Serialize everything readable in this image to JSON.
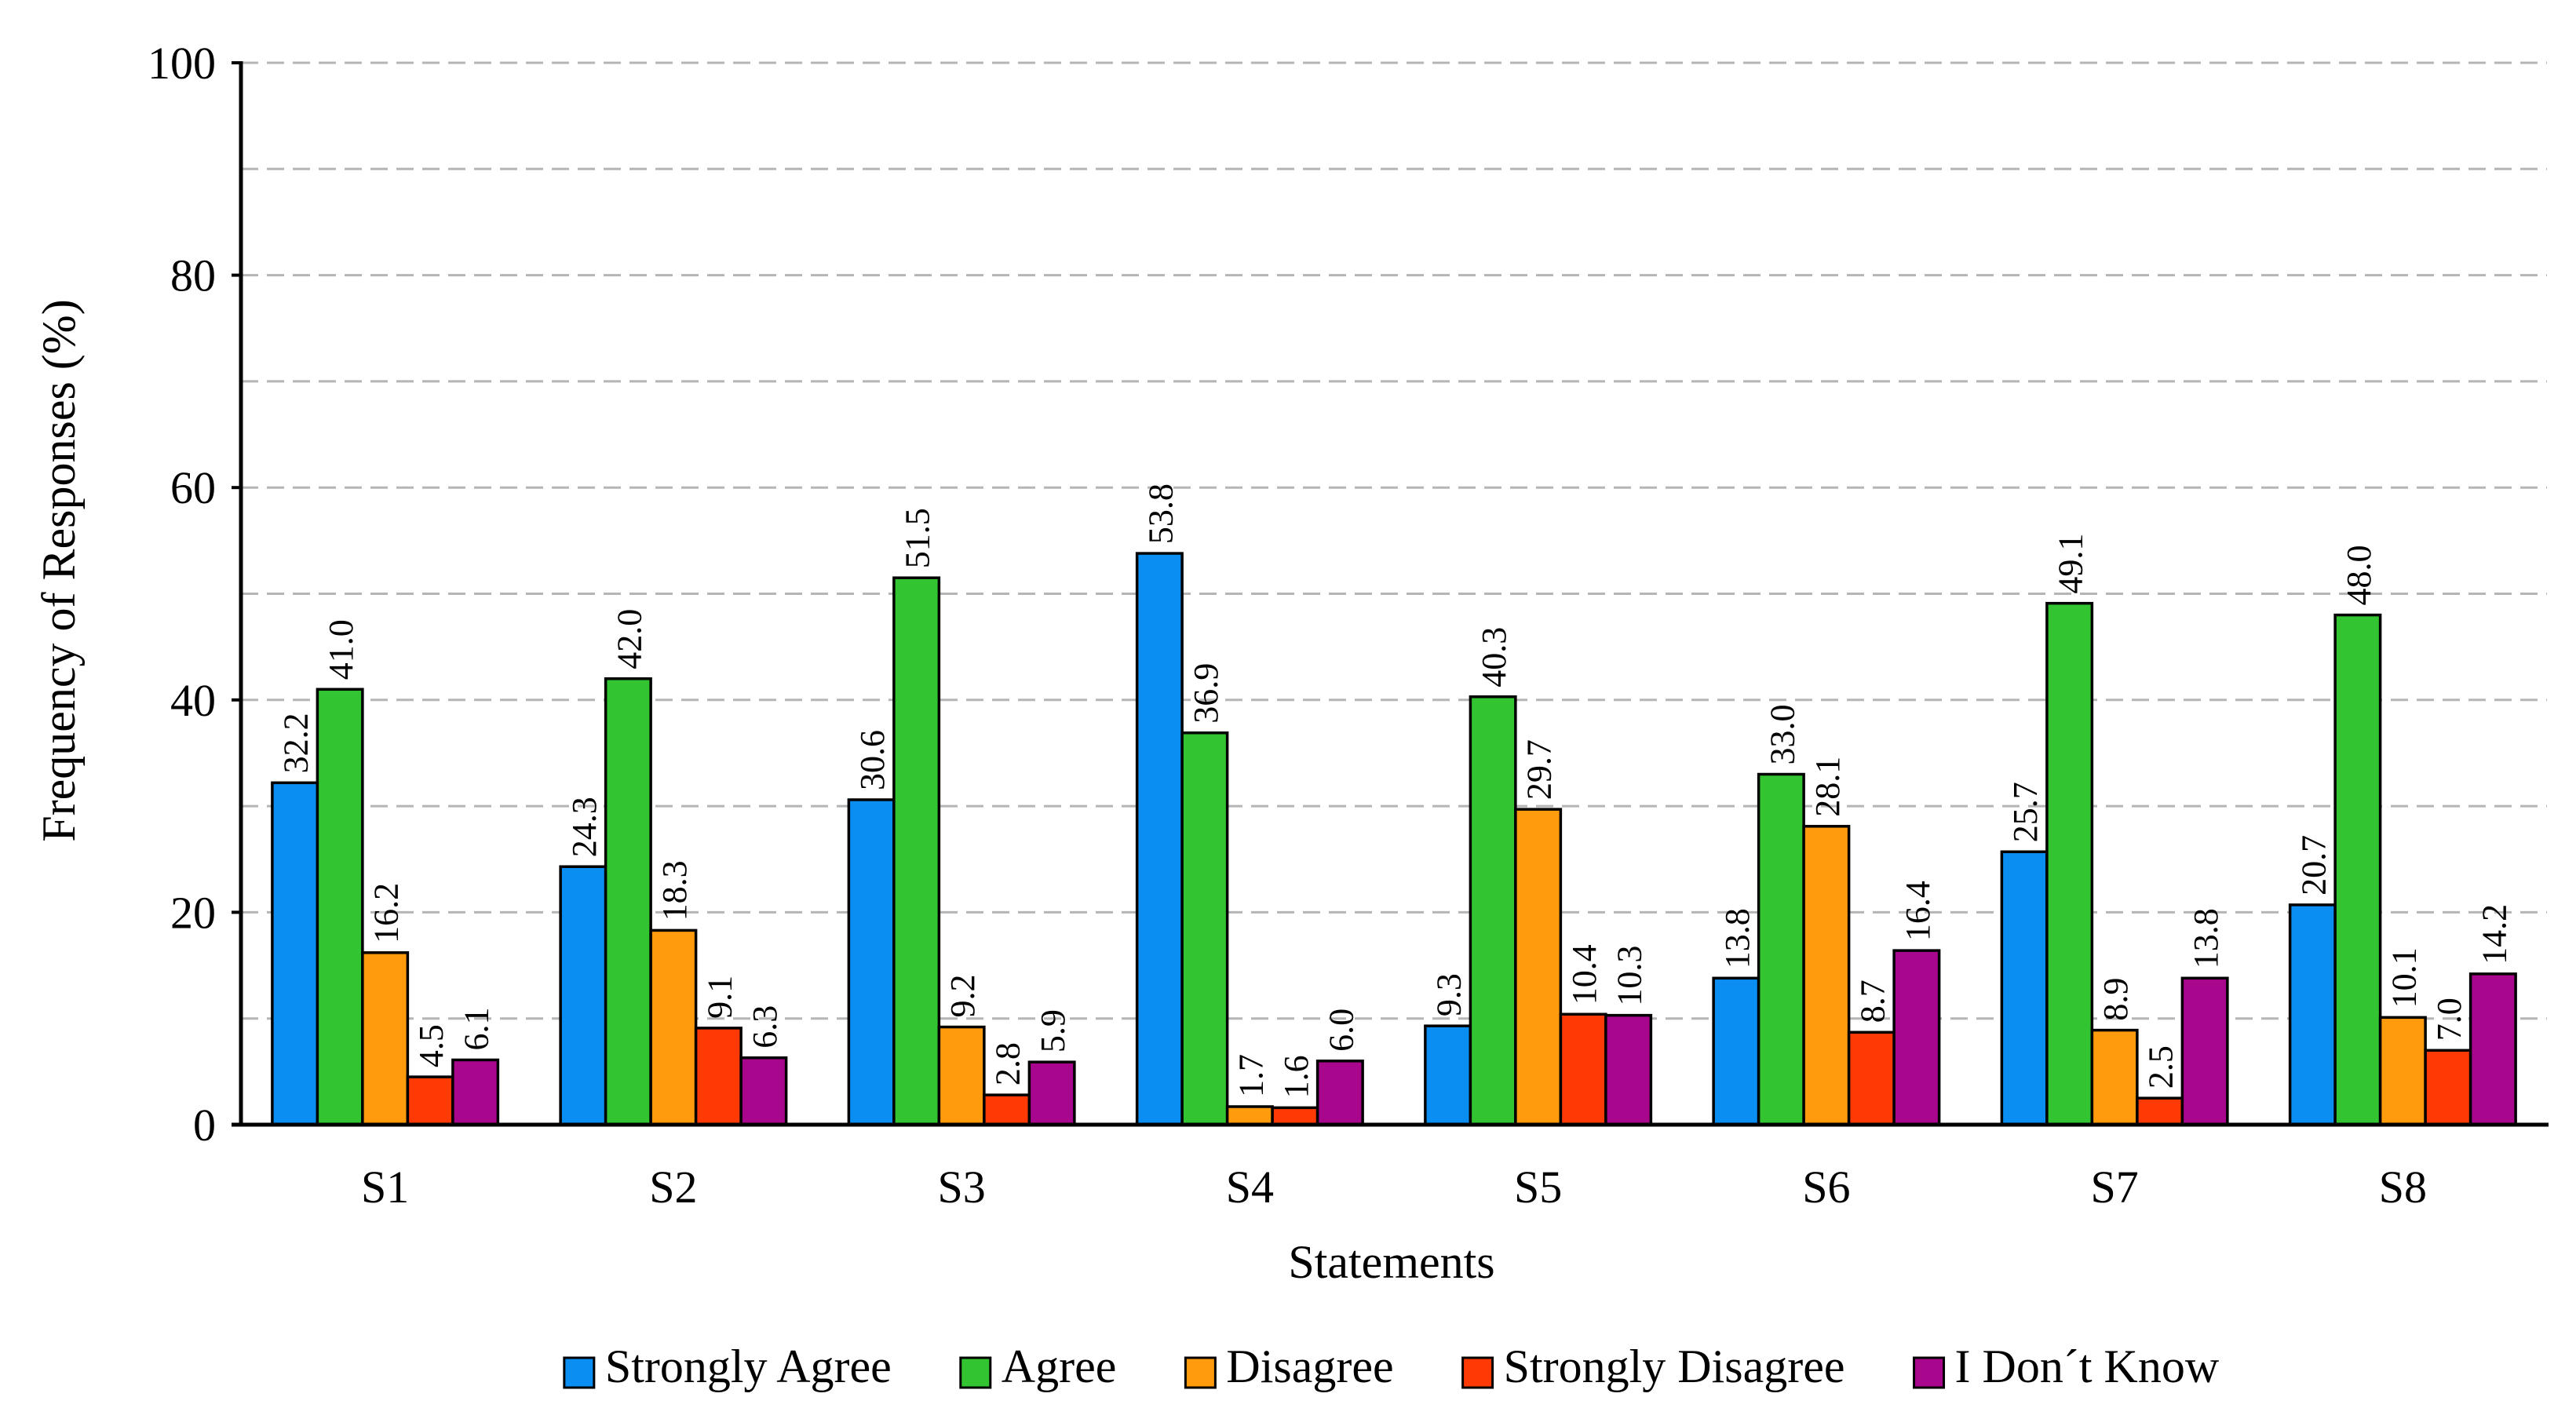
{
  "chart_data": {
    "type": "bar",
    "title": "",
    "xlabel": "Statements",
    "ylabel": "Frequency of Responses (%)",
    "ylim": [
      0,
      100
    ],
    "yticks": [
      0,
      20,
      40,
      60,
      80,
      100
    ],
    "grid": true,
    "legend_position": "bottom",
    "categories": [
      "S1",
      "S2",
      "S3",
      "S4",
      "S5",
      "S6",
      "S7",
      "S8"
    ],
    "series": [
      {
        "name": "Strongly Agree",
        "color": "#0A8EF2",
        "values": [
          32.2,
          24.3,
          30.6,
          53.8,
          9.3,
          13.8,
          25.7,
          20.7
        ]
      },
      {
        "name": "Agree",
        "color": "#33C431",
        "values": [
          41.0,
          42.0,
          51.5,
          36.9,
          40.3,
          33.0,
          49.1,
          48.0
        ]
      },
      {
        "name": "Disagree",
        "color": "#FF9B0D",
        "values": [
          16.2,
          18.3,
          9.2,
          1.7,
          29.7,
          28.1,
          8.9,
          10.1
        ]
      },
      {
        "name": "Strongly Disagree",
        "color": "#FF3A05",
        "values": [
          4.5,
          9.1,
          2.8,
          1.6,
          10.4,
          8.7,
          2.5,
          7.0
        ]
      },
      {
        "name": "I Don´t Know",
        "color": "#A8068C",
        "values": [
          6.1,
          6.3,
          5.9,
          6.0,
          10.3,
          16.4,
          13.8,
          14.2
        ]
      }
    ]
  }
}
